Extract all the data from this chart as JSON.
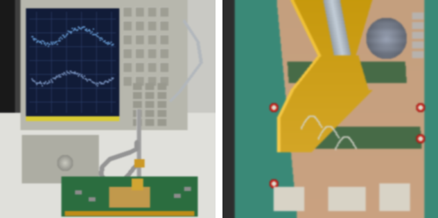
{
  "figsize": [
    6.32,
    3.15
  ],
  "dpi": 100,
  "left": {
    "bg_top": "#a8a898",
    "bg_wall": "#c8c8c0",
    "bg_table": "#e0e0dc",
    "dark_left": "#1a1a1a",
    "analyzer_body": "#b8b8a8",
    "screen_bg": "#0a1830",
    "screen_trace1": "#6090c0",
    "screen_trace2": "#8090b0",
    "box_color": "#a0a090",
    "button_color": "#909088",
    "stand_color": "#909090",
    "pcb_color": "#2a7040",
    "copper_color": "#c09050",
    "table_color": "#dcdcd8"
  },
  "right": {
    "pcb_teal": "#3a8a78",
    "copper_strip": "#c8a870",
    "probe_gold": "#c8980a",
    "probe_dark": "#806010",
    "metal_gray": "#607878",
    "cable_gray": "#a0b0b8",
    "via_red": "#cc3030",
    "pad_white": "#e8e0d0",
    "pad_silver": "#b8b8a8",
    "teal_dark": "#286858"
  }
}
